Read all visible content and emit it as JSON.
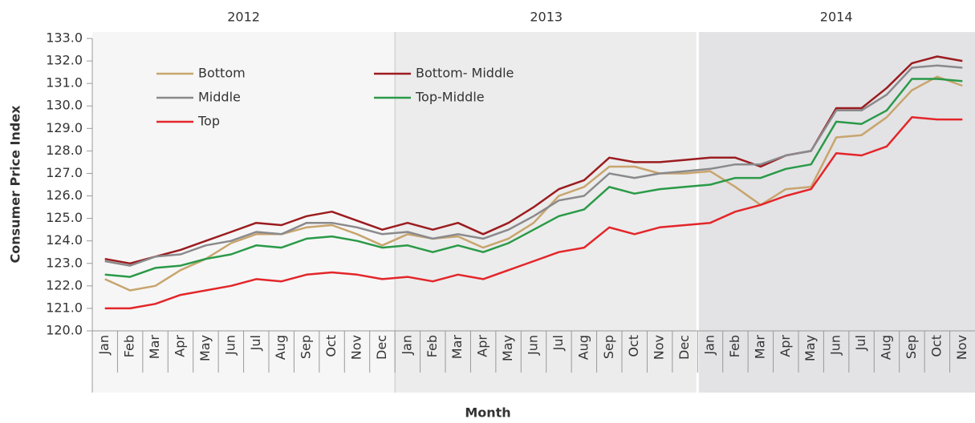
{
  "chart_data": {
    "type": "line",
    "x_label": "Month",
    "y_label": "Consumer Price Index",
    "groups": [
      "2012",
      "2013",
      "2014"
    ],
    "categories": [
      "Jan",
      "Feb",
      "Mar",
      "Apr",
      "May",
      "Jun",
      "Jul",
      "Aug",
      "Sep",
      "Oct",
      "Nov",
      "Dec",
      "Jan",
      "Feb",
      "Mar",
      "Apr",
      "May",
      "Jun",
      "Jul",
      "Aug",
      "Sep",
      "Oct",
      "Nov",
      "Dec",
      "Jan",
      "Feb",
      "Mar",
      "Apr",
      "May",
      "Jun",
      "Jul",
      "Aug",
      "Sep",
      "Oct",
      "Nov"
    ],
    "ylim": [
      120,
      133
    ],
    "yticks": [
      {
        "value": 120,
        "label": "120.0"
      },
      {
        "value": 121,
        "label": "121.0"
      },
      {
        "value": 122,
        "label": "122.0"
      },
      {
        "value": 123,
        "label": "123.0"
      },
      {
        "value": 124,
        "label": "124.0"
      },
      {
        "value": 125,
        "label": "125.0"
      },
      {
        "value": 126,
        "label": "126.0"
      },
      {
        "value": 127,
        "label": "127.0"
      },
      {
        "value": 128,
        "label": "128.0"
      },
      {
        "value": 129,
        "label": "129.0"
      },
      {
        "value": 130,
        "label": "130.0"
      },
      {
        "value": 131,
        "label": "131.0"
      },
      {
        "value": 132,
        "label": "132.0"
      },
      {
        "value": 133,
        "label": "133.0"
      }
    ],
    "band_colors": [
      "#f6f6f6",
      "#ececec",
      "#e3e3e5"
    ],
    "series": [
      {
        "name": "Bottom",
        "color": "#c8a56e",
        "values": [
          122.3,
          121.8,
          122.0,
          122.7,
          123.2,
          123.9,
          124.3,
          124.3,
          124.6,
          124.7,
          124.3,
          123.8,
          124.3,
          124.1,
          124.2,
          123.7,
          124.1,
          124.8,
          126.0,
          126.4,
          127.3,
          127.3,
          127.0,
          127.0,
          127.1,
          126.4,
          125.6,
          126.3,
          126.4,
          128.6,
          128.7,
          129.5,
          130.7,
          131.3,
          130.9
        ]
      },
      {
        "name": "Bottom- Middle",
        "color": "#9b1c1f",
        "values": [
          123.2,
          123.0,
          123.3,
          123.6,
          124.0,
          124.4,
          124.8,
          124.7,
          125.1,
          125.3,
          124.9,
          124.5,
          124.8,
          124.5,
          124.8,
          124.3,
          124.8,
          125.5,
          126.3,
          126.7,
          127.7,
          127.5,
          127.5,
          127.6,
          127.7,
          127.7,
          127.3,
          127.8,
          128.0,
          129.9,
          129.9,
          130.8,
          131.9,
          132.2,
          132.0
        ]
      },
      {
        "name": "Middle",
        "color": "#8a8a8c",
        "values": [
          123.1,
          122.9,
          123.3,
          123.4,
          123.8,
          124.0,
          124.4,
          124.3,
          124.8,
          124.8,
          124.6,
          124.3,
          124.4,
          124.1,
          124.3,
          124.1,
          124.5,
          125.1,
          125.8,
          126.0,
          127.0,
          126.8,
          127.0,
          127.1,
          127.2,
          127.4,
          127.4,
          127.8,
          128.0,
          129.8,
          129.8,
          130.5,
          131.7,
          131.8,
          131.7
        ]
      },
      {
        "name": "Top-Middle",
        "color": "#2a9a48",
        "values": [
          122.5,
          122.4,
          122.8,
          122.9,
          123.2,
          123.4,
          123.8,
          123.7,
          124.1,
          124.2,
          124.0,
          123.7,
          123.8,
          123.5,
          123.8,
          123.5,
          123.9,
          124.5,
          125.1,
          125.4,
          126.4,
          126.1,
          126.3,
          126.4,
          126.5,
          126.8,
          126.8,
          127.2,
          127.4,
          129.3,
          129.2,
          129.8,
          131.2,
          131.2,
          131.1
        ]
      },
      {
        "name": "Top",
        "color": "#e3262a",
        "values": [
          121.0,
          121.0,
          121.2,
          121.6,
          121.8,
          122.0,
          122.3,
          122.2,
          122.5,
          122.6,
          122.5,
          122.3,
          122.4,
          122.2,
          122.5,
          122.3,
          122.7,
          123.1,
          123.5,
          123.7,
          124.6,
          124.3,
          124.6,
          124.7,
          124.8,
          125.3,
          125.6,
          126.0,
          126.3,
          127.9,
          127.8,
          128.2,
          129.5,
          129.4,
          129.4
        ]
      }
    ]
  }
}
